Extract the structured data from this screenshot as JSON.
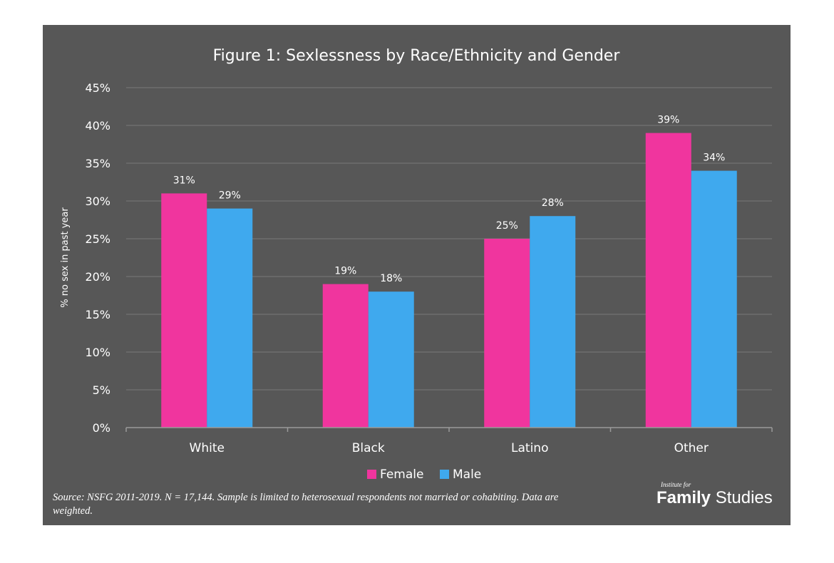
{
  "chart_data": {
    "type": "bar",
    "title": "Figure 1: Sexlessness by Race/Ethnicity and Gender",
    "xlabel": "",
    "ylabel": "% no sex in past year",
    "categories": [
      "White",
      "Black",
      "Latino",
      "Other"
    ],
    "series": [
      {
        "name": "Female",
        "values": [
          31,
          19,
          25,
          39
        ],
        "labels": [
          "31%",
          "19%",
          "25%",
          "39%"
        ],
        "color": "#F0359E"
      },
      {
        "name": "Male",
        "values": [
          29,
          18,
          28,
          34
        ],
        "labels": [
          "29%",
          "18%",
          "28%",
          "34%"
        ],
        "color": "#3FA9EE"
      }
    ],
    "ylim": [
      0,
      45
    ],
    "yticks": [
      0,
      5,
      10,
      15,
      20,
      25,
      30,
      35,
      40,
      45
    ],
    "ytick_labels": [
      "0%",
      "5%",
      "10%",
      "15%",
      "20%",
      "25%",
      "30%",
      "35%",
      "40%",
      "45%"
    ],
    "grid": true,
    "legend": "bottom-center"
  },
  "colors": {
    "background": "#575757",
    "grid": "#7a7a7a",
    "text": "#ffffff"
  },
  "source_note": "Source: NSFG 2011-2019. N = 17,144. Sample is limited to heterosexual respondents not married or cohabiting. Data are weighted.",
  "brand": {
    "small": "Institute for",
    "bold": "Family",
    "regular": "Studies"
  }
}
